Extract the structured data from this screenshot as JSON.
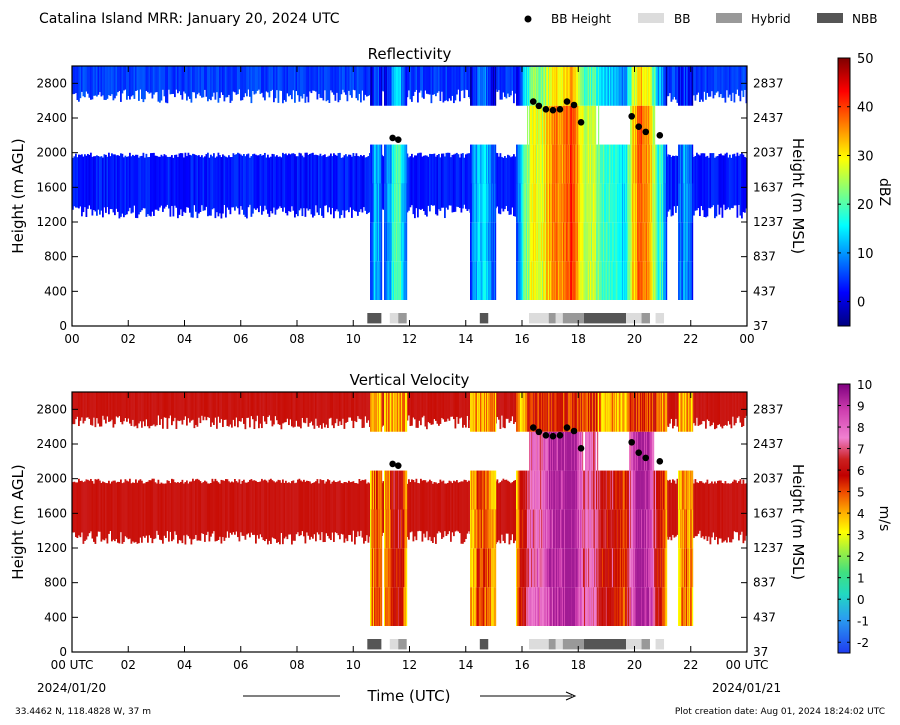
{
  "header": {
    "title": "Catalina Island MRR:  January 20, 2024 UTC",
    "legend": [
      {
        "label": "BB Height",
        "kind": "marker",
        "color": "#000000"
      },
      {
        "label": "BB",
        "kind": "swatch",
        "color": "#dcdcdc"
      },
      {
        "label": "Hybrid",
        "kind": "swatch",
        "color": "#999999"
      },
      {
        "label": "NBB",
        "kind": "swatch",
        "color": "#555555"
      }
    ]
  },
  "footer": {
    "location": "33.4462 N, 118.4828 W, 37 m",
    "creation": "Plot creation date: Aug 01, 2024 18:24:02 UTC",
    "xlabel": "Time (UTC)",
    "start_label": "00 UTC",
    "start_date": "2024/01/20",
    "end_label": "00 UTC",
    "end_date": "2024/01/21"
  },
  "chart_data": [
    {
      "type": "heatmap",
      "title": "Reflectivity",
      "xlabel": "Time (UTC)",
      "ylabel": "Height (m AGL)",
      "ylabel_right": "Height (m MSL)",
      "xlim": [
        0,
        24
      ],
      "ylim": [
        0,
        3000
      ],
      "x_ticks": [
        "00",
        "02",
        "04",
        "06",
        "08",
        "10",
        "12",
        "14",
        "16",
        "18",
        "20",
        "22",
        "00"
      ],
      "y_ticks_left": [
        0,
        400,
        800,
        1200,
        1600,
        2000,
        2400,
        2800
      ],
      "y_ticks_right": [
        37,
        437,
        837,
        1237,
        1637,
        2037,
        2437,
        2837
      ],
      "colorbar": {
        "label": "dBZ",
        "min": -5,
        "max": 50,
        "ticks": [
          0,
          10,
          20,
          30,
          40,
          50
        ],
        "colormap": "jet"
      },
      "bb_height": [
        {
          "x": 11.4,
          "y": 2170
        },
        {
          "x": 11.6,
          "y": 2150
        },
        {
          "x": 16.4,
          "y": 2590
        },
        {
          "x": 16.6,
          "y": 2540
        },
        {
          "x": 16.85,
          "y": 2500
        },
        {
          "x": 17.1,
          "y": 2490
        },
        {
          "x": 17.35,
          "y": 2500
        },
        {
          "x": 17.6,
          "y": 2590
        },
        {
          "x": 17.85,
          "y": 2550
        },
        {
          "x": 18.1,
          "y": 2350
        },
        {
          "x": 19.9,
          "y": 2420
        },
        {
          "x": 20.15,
          "y": 2300
        },
        {
          "x": 20.4,
          "y": 2240
        },
        {
          "x": 20.9,
          "y": 2200
        }
      ],
      "bb_type_segments": [
        {
          "start": 10.5,
          "end": 11.0,
          "type": "NBB"
        },
        {
          "start": 11.3,
          "end": 11.6,
          "type": "BB"
        },
        {
          "start": 11.6,
          "end": 11.9,
          "type": "Hybrid"
        },
        {
          "start": 14.5,
          "end": 14.8,
          "type": "NBB"
        },
        {
          "start": 16.25,
          "end": 16.95,
          "type": "BB"
        },
        {
          "start": 16.95,
          "end": 17.2,
          "type": "Hybrid"
        },
        {
          "start": 17.2,
          "end": 17.45,
          "type": "BB"
        },
        {
          "start": 17.45,
          "end": 18.2,
          "type": "Hybrid"
        },
        {
          "start": 18.2,
          "end": 19.7,
          "type": "NBB"
        },
        {
          "start": 19.7,
          "end": 20.25,
          "type": "BB"
        },
        {
          "start": 20.25,
          "end": 20.55,
          "type": "Hybrid"
        },
        {
          "start": 20.75,
          "end": 21.05,
          "type": "BB"
        }
      ]
    },
    {
      "type": "heatmap",
      "title": "Vertical Velocity",
      "xlabel": "Time (UTC)",
      "ylabel": "Height (m AGL)",
      "ylabel_right": "Height (m MSL)",
      "xlim": [
        0,
        24
      ],
      "ylim": [
        0,
        3000
      ],
      "x_ticks": [
        "00 UTC",
        "02",
        "04",
        "06",
        "08",
        "10",
        "12",
        "14",
        "16",
        "18",
        "20",
        "22",
        "00 UTC"
      ],
      "y_ticks_left": [
        0,
        400,
        800,
        1200,
        1600,
        2000,
        2400,
        2800
      ],
      "y_ticks_right": [
        37,
        437,
        837,
        1237,
        1637,
        2037,
        2437,
        2837
      ],
      "colorbar": {
        "label": "m/s",
        "min": -2.5,
        "max": 10,
        "ticks": [
          -2,
          -1,
          0,
          1,
          2,
          3,
          4,
          5,
          6,
          7,
          8,
          9,
          10
        ],
        "colormap": "velocity"
      },
      "bb_height": [
        {
          "x": 11.4,
          "y": 2170
        },
        {
          "x": 11.6,
          "y": 2150
        },
        {
          "x": 16.4,
          "y": 2590
        },
        {
          "x": 16.6,
          "y": 2540
        },
        {
          "x": 16.85,
          "y": 2500
        },
        {
          "x": 17.1,
          "y": 2490
        },
        {
          "x": 17.35,
          "y": 2500
        },
        {
          "x": 17.6,
          "y": 2590
        },
        {
          "x": 17.85,
          "y": 2550
        },
        {
          "x": 18.1,
          "y": 2350
        },
        {
          "x": 19.9,
          "y": 2420
        },
        {
          "x": 20.15,
          "y": 2300
        },
        {
          "x": 20.4,
          "y": 2240
        },
        {
          "x": 20.9,
          "y": 2200
        }
      ],
      "bb_type_segments": [
        {
          "start": 10.5,
          "end": 11.0,
          "type": "NBB"
        },
        {
          "start": 11.3,
          "end": 11.6,
          "type": "BB"
        },
        {
          "start": 11.6,
          "end": 11.9,
          "type": "Hybrid"
        },
        {
          "start": 14.5,
          "end": 14.8,
          "type": "NBB"
        },
        {
          "start": 16.25,
          "end": 16.95,
          "type": "BB"
        },
        {
          "start": 16.95,
          "end": 17.2,
          "type": "Hybrid"
        },
        {
          "start": 17.2,
          "end": 17.45,
          "type": "BB"
        },
        {
          "start": 17.45,
          "end": 18.2,
          "type": "Hybrid"
        },
        {
          "start": 18.2,
          "end": 19.7,
          "type": "NBB"
        },
        {
          "start": 19.7,
          "end": 20.25,
          "type": "BB"
        },
        {
          "start": 20.25,
          "end": 20.55,
          "type": "Hybrid"
        },
        {
          "start": 20.75,
          "end": 21.05,
          "type": "BB"
        }
      ]
    }
  ]
}
